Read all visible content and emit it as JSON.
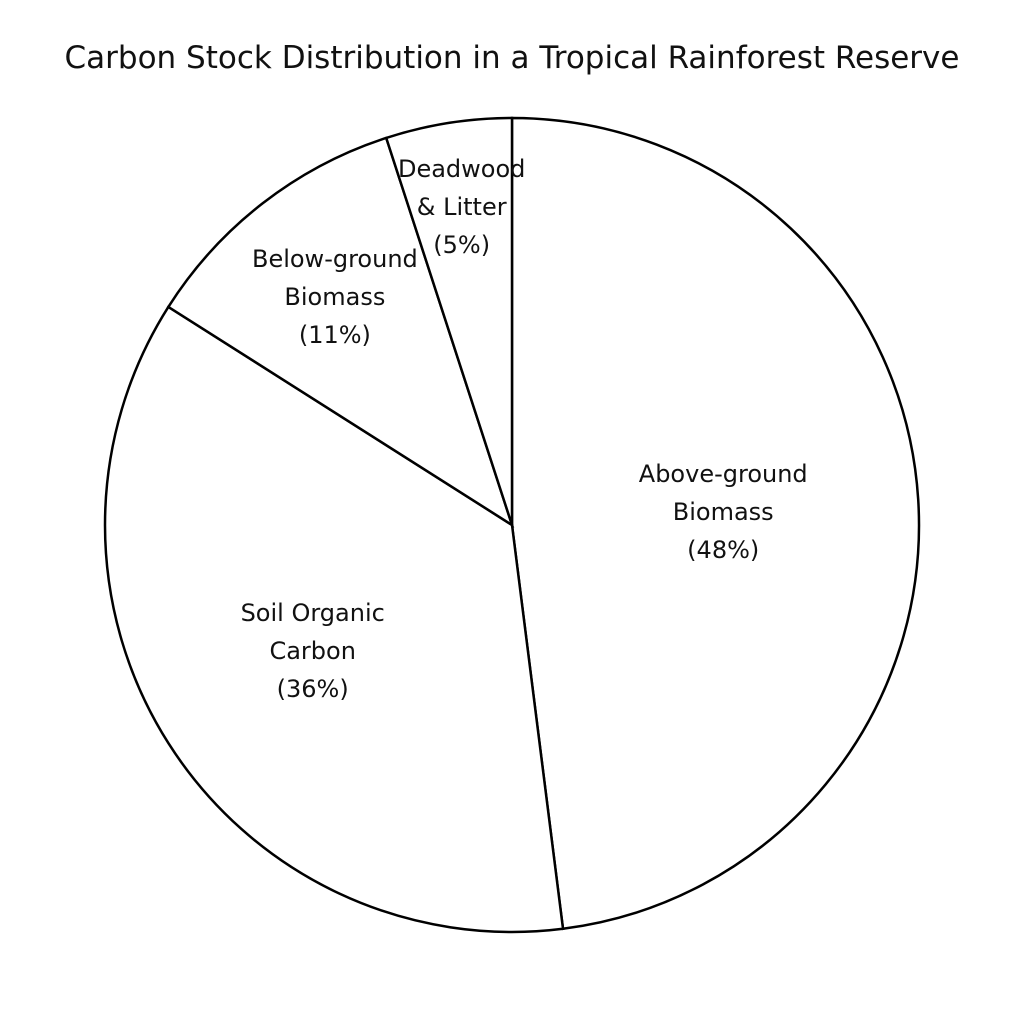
{
  "chart_data": {
    "type": "pie",
    "title": "Carbon Stock Distribution in a Tropical Rainforest Reserve",
    "categories": [
      "Above-ground\nBiomass",
      "Soil Organic\nCarbon",
      "Below-ground\nBiomass",
      "Deadwood\n& Litter"
    ],
    "values": [
      48,
      36,
      11,
      5
    ],
    "value_labels": [
      "(48%)",
      "(36%)",
      "(11%)",
      "(5%)"
    ],
    "color": "#ffffff",
    "edge_color": "#000000"
  }
}
